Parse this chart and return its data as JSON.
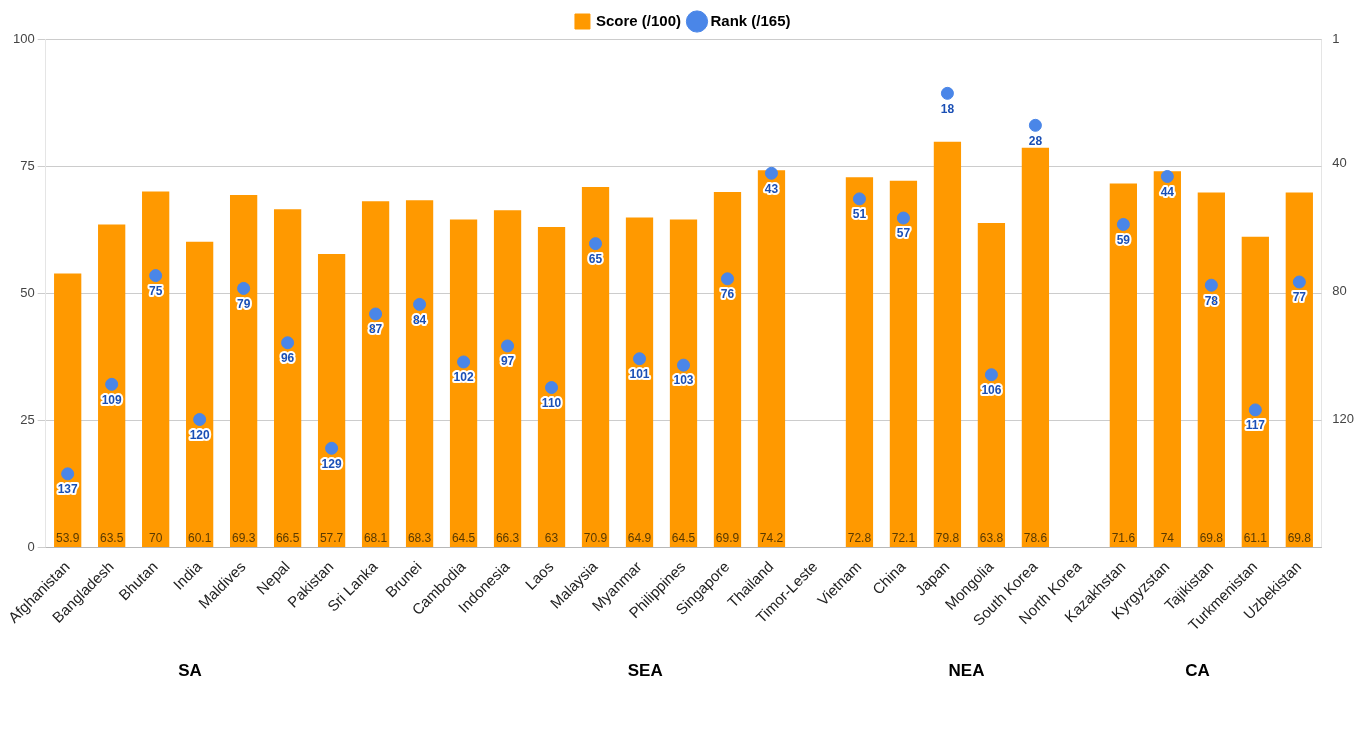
{
  "chart_data": {
    "type": "bar",
    "categories": [
      "Afghanistan",
      "Bangladesh",
      "Bhutan",
      "India",
      "Maldives",
      "Nepal",
      "Pakistan",
      "Sri Lanka",
      "Brunei",
      "Cambodia",
      "Indonesia",
      "Laos",
      "Malaysia",
      "Myanmar",
      "Philippines",
      "Singapore",
      "Thailand",
      "Timor-Leste",
      "Vietnam",
      "China",
      "Japan",
      "Mongolia",
      "South Korea",
      "North Korea",
      "Kazakhstan",
      "Kyrgyzstan",
      "Tajikistan",
      "Turkmenistan",
      "Uzbekistan"
    ],
    "series": [
      {
        "name": "Score (/100)",
        "color": "#ff9900",
        "values": [
          53.9,
          63.5,
          70,
          60.1,
          69.3,
          66.5,
          57.7,
          68.1,
          68.3,
          64.5,
          66.3,
          63,
          70.9,
          64.9,
          64.5,
          69.9,
          74.2,
          null,
          72.8,
          72.1,
          79.8,
          63.8,
          78.6,
          null,
          71.6,
          74,
          69.8,
          61.1,
          69.8
        ]
      },
      {
        "name": "Rank (/165)",
        "type": "scatter",
        "axis": "y2",
        "color": "#4a86e8",
        "values": [
          137,
          109,
          75,
          120,
          79,
          96,
          129,
          87,
          84,
          102,
          97,
          110,
          65,
          101,
          103,
          76,
          43,
          null,
          51,
          57,
          18,
          106,
          28,
          null,
          59,
          44,
          78,
          117,
          77
        ]
      }
    ],
    "ylim": [
      0,
      100
    ],
    "yticks": [
      0,
      25,
      50,
      75,
      100
    ],
    "y2lim": [
      160,
      1
    ],
    "y2ticks": [
      1,
      40,
      80,
      120
    ],
    "grid": "y",
    "legend": "top",
    "marker": "circle",
    "data_labels": true,
    "annotations": [
      "SA",
      "SEA",
      "NEA",
      "CA"
    ]
  }
}
